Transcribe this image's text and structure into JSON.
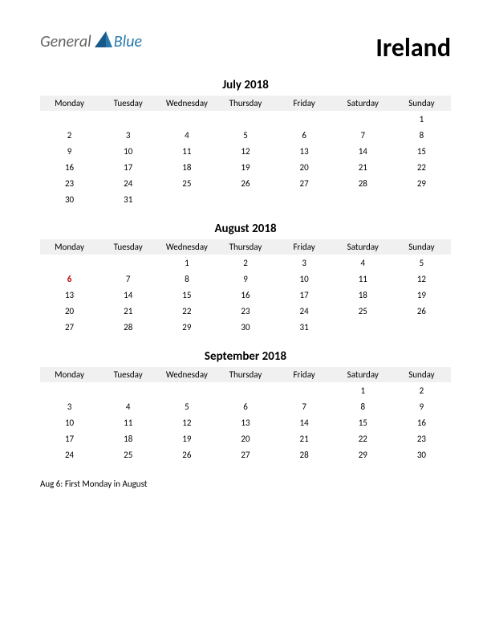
{
  "header": {
    "logo_general": "General",
    "logo_blue": "Blue",
    "country": "Ireland"
  },
  "day_headers": [
    "Monday",
    "Tuesday",
    "Wednesday",
    "Thursday",
    "Friday",
    "Saturday",
    "Sunday"
  ],
  "months": [
    {
      "title": "July 2018",
      "weeks": [
        [
          "",
          "",
          "",
          "",
          "",
          "",
          "1"
        ],
        [
          "2",
          "3",
          "4",
          "5",
          "6",
          "7",
          "8"
        ],
        [
          "9",
          "10",
          "11",
          "12",
          "13",
          "14",
          "15"
        ],
        [
          "16",
          "17",
          "18",
          "19",
          "20",
          "21",
          "22"
        ],
        [
          "23",
          "24",
          "25",
          "26",
          "27",
          "28",
          "29"
        ],
        [
          "30",
          "31",
          "",
          "",
          "",
          "",
          ""
        ]
      ],
      "holidays": []
    },
    {
      "title": "August 2018",
      "weeks": [
        [
          "",
          "",
          "1",
          "2",
          "3",
          "4",
          "5"
        ],
        [
          "6",
          "7",
          "8",
          "9",
          "10",
          "11",
          "12"
        ],
        [
          "13",
          "14",
          "15",
          "16",
          "17",
          "18",
          "19"
        ],
        [
          "20",
          "21",
          "22",
          "23",
          "24",
          "25",
          "26"
        ],
        [
          "27",
          "28",
          "29",
          "30",
          "31",
          "",
          ""
        ]
      ],
      "holidays": [
        {
          "week": 1,
          "day": 0
        }
      ]
    },
    {
      "title": "September 2018",
      "weeks": [
        [
          "",
          "",
          "",
          "",
          "",
          "1",
          "2"
        ],
        [
          "3",
          "4",
          "5",
          "6",
          "7",
          "8",
          "9"
        ],
        [
          "10",
          "11",
          "12",
          "13",
          "14",
          "15",
          "16"
        ],
        [
          "17",
          "18",
          "19",
          "20",
          "21",
          "22",
          "23"
        ],
        [
          "24",
          "25",
          "26",
          "27",
          "28",
          "29",
          "30"
        ]
      ],
      "holidays": []
    }
  ],
  "holiday_notes": [
    "Aug 6: First Monday in August"
  ],
  "colors": {
    "background": "#ffffff",
    "text": "#000000",
    "header_bg": "#f0f0f0",
    "holiday": "#c00000",
    "logo_gray": "#666666",
    "logo_blue": "#2a7ab0"
  }
}
